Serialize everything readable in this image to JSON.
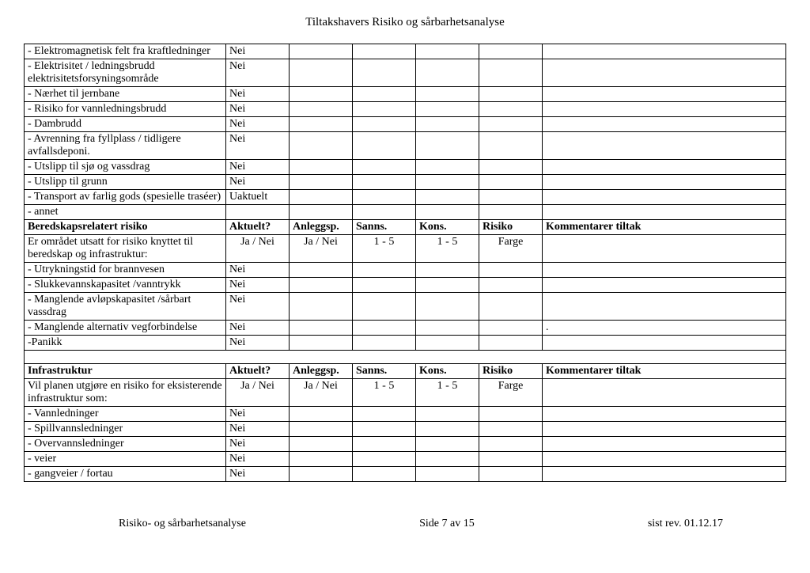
{
  "title": "Tiltakshavers Risiko og sårbarhetsanalyse",
  "columns": {
    "desc": "",
    "aktuelt": "Aktuelt?",
    "anleggsp": "Anleggsp.",
    "sanns": "Sanns.",
    "kons": "Kons.",
    "risiko": "Risiko",
    "kommentar": "Kommentarer tiltak"
  },
  "subheader": {
    "aktuelt": "Ja / Nei",
    "anleggsp": "Ja / Nei",
    "sanns": "1  - 5",
    "kons": "1  - 5",
    "risiko": "Farge"
  },
  "section1_rows": [
    {
      "desc": "- Elektromagnetisk felt fra kraftledninger",
      "akt": "Nei"
    },
    {
      "desc": "- Elektrisitet / ledningsbrudd elektrisitetsforsyningsområde",
      "akt": "Nei"
    },
    {
      "desc": "- Nærhet til jernbane",
      "akt": "Nei"
    },
    {
      "desc": "- Risiko for vannledningsbrudd",
      "akt": "Nei"
    },
    {
      "desc": "- Dambrudd",
      "akt": "Nei"
    },
    {
      "desc": "- Avrenning fra fyllplass / tidligere avfallsdeponi.",
      "akt": "Nei"
    },
    {
      "desc": "- Utslipp til sjø og vassdrag",
      "akt": "Nei"
    },
    {
      "desc": "- Utslipp til grunn",
      "akt": "Nei"
    },
    {
      "desc": "- Transport av farlig gods (spesielle traséer)",
      "akt": "Uaktuelt"
    },
    {
      "desc": "- annet",
      "akt": ""
    }
  ],
  "section2_title": "Beredskapsrelatert risiko",
  "section2_question": "Er området utsatt for risiko knyttet til beredskap og infrastruktur:",
  "section2_rows": [
    {
      "desc": "- Utrykningstid for brannvesen",
      "akt": "Nei",
      "komm": ""
    },
    {
      "desc": "- Slukkevannskapasitet /vanntrykk",
      "akt": "Nei",
      "komm": ""
    },
    {
      "desc": "- Manglende avløpskapasitet /sårbart vassdrag",
      "akt": "Nei",
      "komm": ""
    },
    {
      "desc": "- Manglende alternativ vegforbindelse",
      "akt": "Nei",
      "komm": "."
    },
    {
      "desc": "-Panikk",
      "akt": "Nei",
      "komm": ""
    }
  ],
  "section3_title": "Infrastruktur",
  "section3_question": "Vil planen utgjøre en risiko for eksisterende infrastruktur som:",
  "section3_rows": [
    {
      "desc": "- Vannledninger",
      "akt": "Nei"
    },
    {
      "desc": "- Spillvannsledninger",
      "akt": "Nei"
    },
    {
      "desc": "- Overvannsledninger",
      "akt": "Nei"
    },
    {
      "desc": "- veier",
      "akt": "Nei"
    },
    {
      "desc": "- gangveier / fortau",
      "akt": "Nei"
    }
  ],
  "footer": {
    "left": "Risiko- og sårbarhetsanalyse",
    "center": "Side 7 av 15",
    "right": "sist rev. 01.12.17"
  }
}
